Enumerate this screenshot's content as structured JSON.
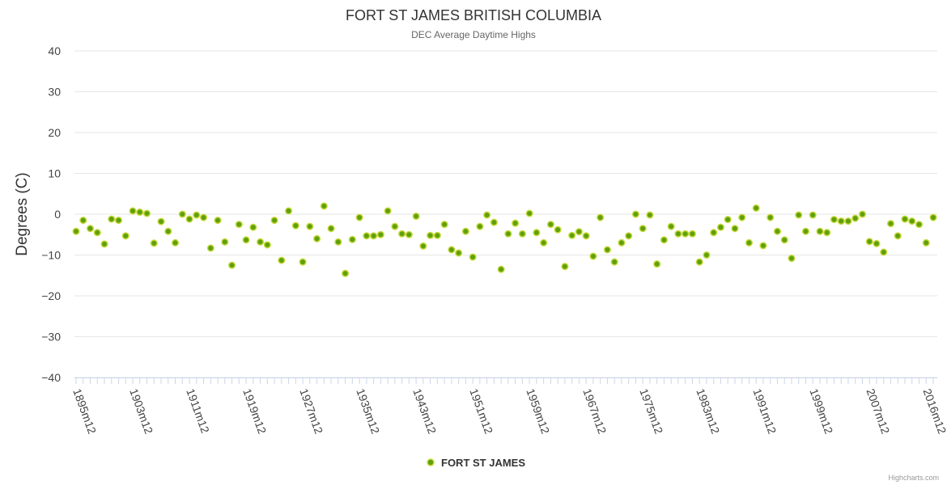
{
  "chart_data": {
    "type": "scatter",
    "title": "FORT ST JAMES BRITISH COLUMBIA",
    "subtitle": "DEC Average Daytime Highs",
    "ylabel": "Degrees (C)",
    "xlabel": "",
    "ylim": [
      -40,
      40
    ],
    "yticks": [
      40,
      30,
      20,
      10,
      0,
      -10,
      -20,
      -30,
      -40
    ],
    "xticklabels": [
      "1895m12",
      "1903m12",
      "1911m12",
      "1919m12",
      "1927m12",
      "1935m12",
      "1943m12",
      "1951m12",
      "1959m12",
      "1967m12",
      "1975m12",
      "1983m12",
      "1991m12",
      "1999m12",
      "2007m12",
      "2016m12"
    ],
    "x_start_year": 1895,
    "x_end_year": 2016,
    "grid": true,
    "legend_position": "bottom-center",
    "series": [
      {
        "name": "FORT ST JAMES",
        "color": "#5fa10a",
        "points": [
          {
            "x": 1895,
            "y": -4.2
          },
          {
            "x": 1896,
            "y": -1.5
          },
          {
            "x": 1897,
            "y": -3.5
          },
          {
            "x": 1898,
            "y": -4.5
          },
          {
            "x": 1899,
            "y": -7.3
          },
          {
            "x": 1900,
            "y": -1.2
          },
          {
            "x": 1901,
            "y": -1.5
          },
          {
            "x": 1902,
            "y": -5.3
          },
          {
            "x": 1903,
            "y": 0.8
          },
          {
            "x": 1904,
            "y": 0.5
          },
          {
            "x": 1905,
            "y": 0.2
          },
          {
            "x": 1906,
            "y": -7.1
          },
          {
            "x": 1907,
            "y": -1.8
          },
          {
            "x": 1908,
            "y": -4.2
          },
          {
            "x": 1909,
            "y": -7.0
          },
          {
            "x": 1910,
            "y": 0.0
          },
          {
            "x": 1911,
            "y": -1.2
          },
          {
            "x": 1912,
            "y": -0.2
          },
          {
            "x": 1913,
            "y": -0.8
          },
          {
            "x": 1914,
            "y": -8.3
          },
          {
            "x": 1915,
            "y": -1.5
          },
          {
            "x": 1916,
            "y": -6.8
          },
          {
            "x": 1917,
            "y": -12.5
          },
          {
            "x": 1918,
            "y": -2.5
          },
          {
            "x": 1919,
            "y": -6.3
          },
          {
            "x": 1920,
            "y": -3.2
          },
          {
            "x": 1921,
            "y": -6.8
          },
          {
            "x": 1922,
            "y": -7.5
          },
          {
            "x": 1923,
            "y": -1.5
          },
          {
            "x": 1924,
            "y": -11.3
          },
          {
            "x": 1925,
            "y": 0.8
          },
          {
            "x": 1926,
            "y": -2.8
          },
          {
            "x": 1927,
            "y": -11.7
          },
          {
            "x": 1928,
            "y": -3.0
          },
          {
            "x": 1929,
            "y": -6.0
          },
          {
            "x": 1930,
            "y": 2.0
          },
          {
            "x": 1931,
            "y": -3.5
          },
          {
            "x": 1932,
            "y": -6.8
          },
          {
            "x": 1933,
            "y": -14.5
          },
          {
            "x": 1934,
            "y": -6.2
          },
          {
            "x": 1935,
            "y": -0.8
          },
          {
            "x": 1936,
            "y": -5.3
          },
          {
            "x": 1937,
            "y": -5.3
          },
          {
            "x": 1938,
            "y": -5.0
          },
          {
            "x": 1939,
            "y": 0.8
          },
          {
            "x": 1940,
            "y": -3.0
          },
          {
            "x": 1941,
            "y": -4.8
          },
          {
            "x": 1942,
            "y": -5.0
          },
          {
            "x": 1943,
            "y": -0.5
          },
          {
            "x": 1944,
            "y": -7.8
          },
          {
            "x": 1945,
            "y": -5.2
          },
          {
            "x": 1946,
            "y": -5.2
          },
          {
            "x": 1947,
            "y": -2.5
          },
          {
            "x": 1948,
            "y": -8.7
          },
          {
            "x": 1949,
            "y": -9.5
          },
          {
            "x": 1950,
            "y": -4.2
          },
          {
            "x": 1951,
            "y": -10.5
          },
          {
            "x": 1952,
            "y": -3.0
          },
          {
            "x": 1953,
            "y": -0.2
          },
          {
            "x": 1954,
            "y": -2.0
          },
          {
            "x": 1955,
            "y": -13.5
          },
          {
            "x": 1956,
            "y": -4.8
          },
          {
            "x": 1957,
            "y": -2.2
          },
          {
            "x": 1958,
            "y": -4.8
          },
          {
            "x": 1959,
            "y": 0.2
          },
          {
            "x": 1960,
            "y": -4.5
          },
          {
            "x": 1961,
            "y": -7.0
          },
          {
            "x": 1962,
            "y": -2.5
          },
          {
            "x": 1963,
            "y": -3.8
          },
          {
            "x": 1964,
            "y": -12.8
          },
          {
            "x": 1965,
            "y": -5.2
          },
          {
            "x": 1966,
            "y": -4.3
          },
          {
            "x": 1967,
            "y": -5.3
          },
          {
            "x": 1968,
            "y": -10.3
          },
          {
            "x": 1969,
            "y": -0.8
          },
          {
            "x": 1970,
            "y": -8.7
          },
          {
            "x": 1971,
            "y": -11.7
          },
          {
            "x": 1972,
            "y": -7.0
          },
          {
            "x": 1973,
            "y": -5.3
          },
          {
            "x": 1974,
            "y": 0.0
          },
          {
            "x": 1975,
            "y": -3.5
          },
          {
            "x": 1976,
            "y": -0.2
          },
          {
            "x": 1977,
            "y": -12.2
          },
          {
            "x": 1978,
            "y": -6.3
          },
          {
            "x": 1979,
            "y": -3.0
          },
          {
            "x": 1980,
            "y": -4.8
          },
          {
            "x": 1981,
            "y": -4.8
          },
          {
            "x": 1982,
            "y": -4.8
          },
          {
            "x": 1983,
            "y": -11.7
          },
          {
            "x": 1984,
            "y": -10.0
          },
          {
            "x": 1985,
            "y": -4.5
          },
          {
            "x": 1986,
            "y": -3.2
          },
          {
            "x": 1987,
            "y": -1.3
          },
          {
            "x": 1988,
            "y": -3.5
          },
          {
            "x": 1989,
            "y": -0.8
          },
          {
            "x": 1990,
            "y": -7.0
          },
          {
            "x": 1991,
            "y": 1.5
          },
          {
            "x": 1992,
            "y": -7.7
          },
          {
            "x": 1993,
            "y": -0.8
          },
          {
            "x": 1994,
            "y": -4.2
          },
          {
            "x": 1995,
            "y": -6.3
          },
          {
            "x": 1996,
            "y": -10.8
          },
          {
            "x": 1997,
            "y": -0.2
          },
          {
            "x": 1998,
            "y": -4.2
          },
          {
            "x": 1999,
            "y": -0.2
          },
          {
            "x": 2000,
            "y": -4.2
          },
          {
            "x": 2001,
            "y": -4.5
          },
          {
            "x": 2002,
            "y": -1.3
          },
          {
            "x": 2003,
            "y": -1.7
          },
          {
            "x": 2004,
            "y": -1.7
          },
          {
            "x": 2005,
            "y": -1.0
          },
          {
            "x": 2006,
            "y": 0.0
          },
          {
            "x": 2007,
            "y": -6.7
          },
          {
            "x": 2008,
            "y": -7.2
          },
          {
            "x": 2009,
            "y": -9.3
          },
          {
            "x": 2010,
            "y": -2.3
          },
          {
            "x": 2011,
            "y": -5.3
          },
          {
            "x": 2012,
            "y": -1.2
          },
          {
            "x": 2013,
            "y": -1.7
          },
          {
            "x": 2014,
            "y": -2.5
          },
          {
            "x": 2015,
            "y": -7.0
          },
          {
            "x": 2016,
            "y": -0.8
          }
        ]
      }
    ]
  },
  "credits": "Highcharts.com"
}
